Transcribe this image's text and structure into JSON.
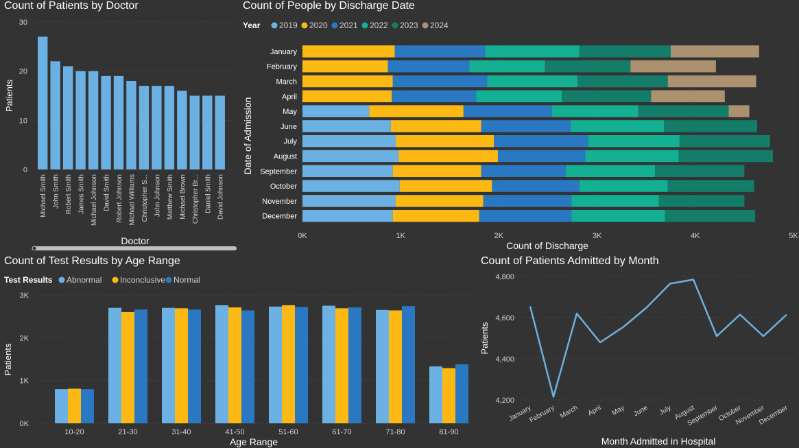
{
  "colors": {
    "s2019": "#6cb1e3",
    "s2020": "#fdb913",
    "s2021": "#2b78c2",
    "s2022": "#14b094",
    "s2023": "#147d6a",
    "s2024": "#ac9170",
    "abnormal": "#6cb1e3",
    "inconclusive": "#fdb913",
    "normal": "#2b78c2",
    "line": "#6cb1e3",
    "doctor_bar": "#6cb1e3",
    "text": "#ffffff",
    "muted": "#d2d2d2",
    "grid": "#555555"
  },
  "panels": {
    "doctor": {
      "title": "Count of Patients by Doctor"
    },
    "discharge": {
      "title": "Count of People by Discharge Date"
    },
    "age": {
      "title": "Count of Test Results by Age Range"
    },
    "month": {
      "title": "Count of Patients Admitted by Month"
    }
  },
  "chart_data": [
    {
      "id": "doctor",
      "type": "bar",
      "title": "Count of Patients by Doctor",
      "xlabel": "Doctor",
      "ylabel": "Patients",
      "categories": [
        "Michael Smith",
        "John Smith",
        "Robert Smith",
        "James Smith",
        "Michael Johnson",
        "David Smith",
        "Robert Johnson",
        "Michael Williams",
        "Christopher S...",
        "John Johnson",
        "Matthew Smith",
        "Michael Brown",
        "Christopher Br...",
        "Daniel Smith",
        "David Johnson"
      ],
      "values": [
        27,
        22,
        21,
        20,
        20,
        19,
        19,
        18,
        17,
        17,
        17,
        16,
        15,
        15,
        15
      ],
      "ylim": [
        0,
        30
      ],
      "yticks": [
        0,
        10,
        20,
        30
      ],
      "grid": true
    },
    {
      "id": "discharge",
      "type": "bar",
      "orientation": "horizontal",
      "stacked": true,
      "title": "Count of People by Discharge Date",
      "xlabel": "Count of Discharge",
      "ylabel": "Date of Admission",
      "legend_title": "Year",
      "legend_position": "top-left",
      "categories": [
        "January",
        "February",
        "March",
        "April",
        "May",
        "June",
        "July",
        "August",
        "September",
        "October",
        "November",
        "December"
      ],
      "series": [
        {
          "name": "2019",
          "values": [
            0,
            0,
            0,
            0,
            680,
            900,
            950,
            980,
            920,
            990,
            950,
            920
          ]
        },
        {
          "name": "2020",
          "values": [
            940,
            870,
            920,
            910,
            960,
            920,
            1000,
            1010,
            900,
            940,
            890,
            880
          ]
        },
        {
          "name": "2021",
          "values": [
            920,
            830,
            960,
            860,
            900,
            910,
            960,
            890,
            860,
            890,
            900,
            940
          ]
        },
        {
          "name": "2022",
          "values": [
            960,
            770,
            920,
            870,
            880,
            950,
            930,
            950,
            910,
            900,
            890,
            950
          ]
        },
        {
          "name": "2023",
          "values": [
            930,
            870,
            920,
            910,
            920,
            950,
            920,
            960,
            910,
            880,
            870,
            920
          ]
        },
        {
          "name": "2024",
          "values": [
            900,
            870,
            900,
            750,
            210,
            0,
            0,
            0,
            0,
            0,
            0,
            0
          ]
        }
      ],
      "xlim": [
        0,
        5000
      ],
      "xticks": [
        0,
        1000,
        2000,
        3000,
        4000,
        5000
      ],
      "xtick_labels": [
        "0K",
        "1K",
        "2K",
        "3K",
        "4K",
        "5K"
      ],
      "grid": true
    },
    {
      "id": "age",
      "type": "bar",
      "title": "Count of Test Results by Age Range",
      "xlabel": "Age Range",
      "ylabel": "Patients",
      "legend_title": "Test Results",
      "legend_position": "top-left",
      "categories": [
        "10-20",
        "21-30",
        "31-40",
        "41-50",
        "51-60",
        "61-70",
        "71-80",
        "81-90"
      ],
      "series": [
        {
          "name": "Abnormal",
          "values": [
            800,
            2700,
            2700,
            2760,
            2730,
            2750,
            2650,
            1330
          ]
        },
        {
          "name": "Inconclusive",
          "values": [
            810,
            2600,
            2690,
            2710,
            2760,
            2690,
            2640,
            1290
          ]
        },
        {
          "name": "Normal",
          "values": [
            800,
            2660,
            2660,
            2640,
            2720,
            2710,
            2740,
            1380
          ]
        }
      ],
      "ylim": [
        0,
        3000
      ],
      "yticks": [
        0,
        1000,
        2000,
        3000
      ],
      "ytick_labels": [
        "0K",
        "1K",
        "2K",
        "3K"
      ],
      "grid": true
    },
    {
      "id": "month",
      "type": "line",
      "title": "Count of Patients Admitted by Month",
      "xlabel": "Month Admitted in Hospital",
      "ylabel": "Patients",
      "categories": [
        "January",
        "February",
        "March",
        "April",
        "May",
        "June",
        "July",
        "August",
        "September",
        "October",
        "November",
        "December"
      ],
      "values": [
        4655,
        4215,
        4620,
        4480,
        4555,
        4650,
        4765,
        4785,
        4510,
        4615,
        4510,
        4615
      ],
      "ylim": [
        4200,
        4800
      ],
      "yticks": [
        4200,
        4400,
        4600,
        4800
      ],
      "ytick_labels": [
        "4,200",
        "4,400",
        "4,600",
        "4,800"
      ],
      "grid": true
    }
  ]
}
